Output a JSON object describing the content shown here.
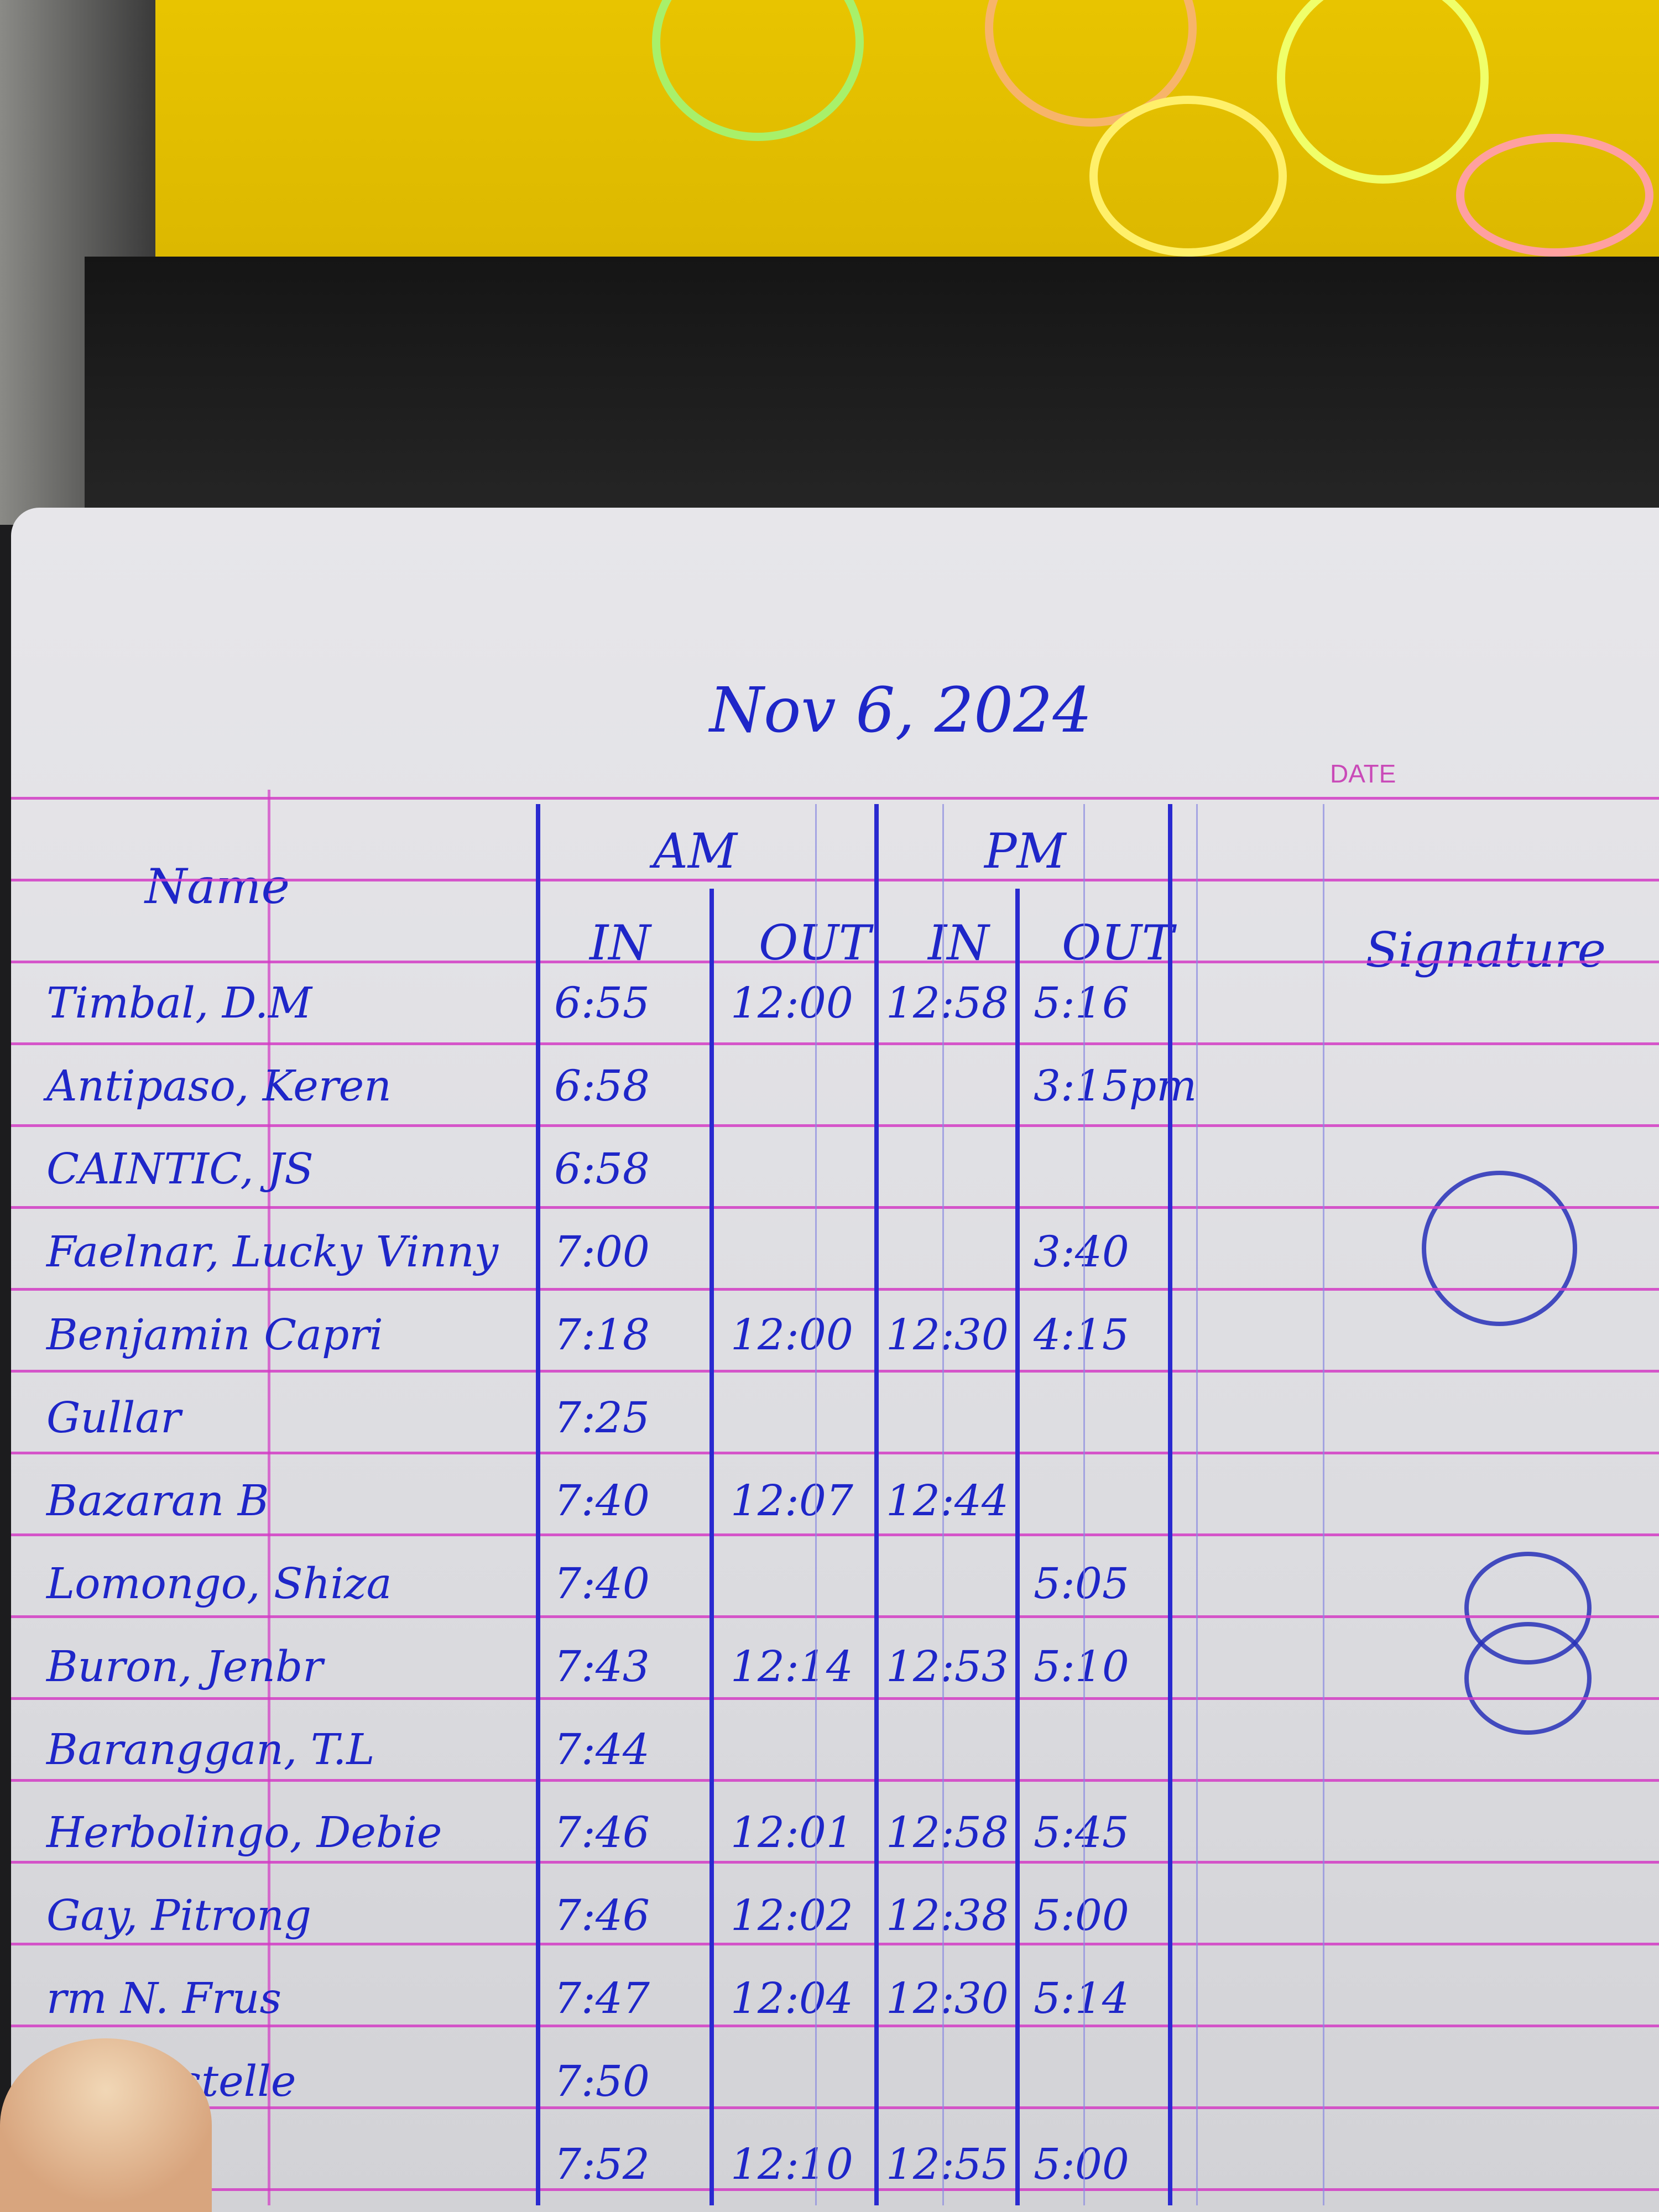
{
  "date_heading": "Nov 6, 2024",
  "printed_label": "DATE",
  "headers": {
    "name": "Name",
    "am": "AM",
    "pm": "PM",
    "am_in": "IN",
    "am_out": "OUT",
    "pm_in": "IN",
    "pm_out": "OUT",
    "signature": "Signature"
  },
  "colors": {
    "paper": "#e4e4e8",
    "ruling": "#d23cc4",
    "ink": "#1e26c8",
    "screen": "#e2be00"
  },
  "rows": [
    {
      "name": "Timbal, D.M",
      "am_in": "6:55",
      "am_out": "12:00",
      "pm_in": "12:58",
      "pm_out": "5:16"
    },
    {
      "name": "Antipaso, Keren",
      "am_in": "6:58",
      "am_out": "",
      "pm_in": "",
      "pm_out": "3:15pm"
    },
    {
      "name": "CAINTIC, JS",
      "am_in": "6:58",
      "am_out": "",
      "pm_in": "",
      "pm_out": ""
    },
    {
      "name": "Faelnar, Lucky Vinny",
      "am_in": "7:00",
      "am_out": "",
      "pm_in": "",
      "pm_out": "3:40"
    },
    {
      "name": "Benjamin Capri",
      "am_in": "7:18",
      "am_out": "12:00",
      "pm_in": "12:30",
      "pm_out": "4:15"
    },
    {
      "name": "Gullar",
      "am_in": "7:25",
      "am_out": "",
      "pm_in": "",
      "pm_out": ""
    },
    {
      "name": "Bazaran B",
      "am_in": "7:40",
      "am_out": "12:07",
      "pm_in": "12:44",
      "pm_out": ""
    },
    {
      "name": "Lomongo, Shiza",
      "am_in": "7:40",
      "am_out": "",
      "pm_in": "",
      "pm_out": "5:05"
    },
    {
      "name": "Buron, Jenbr",
      "am_in": "7:43",
      "am_out": "12:14",
      "pm_in": "12:53",
      "pm_out": "5:10"
    },
    {
      "name": "Baranggan, T.L",
      "am_in": "7:44",
      "am_out": "",
      "pm_in": "",
      "pm_out": ""
    },
    {
      "name": "Herbolingo, Debie",
      "am_in": "7:46",
      "am_out": "12:01",
      "pm_in": "12:58",
      "pm_out": "5:45"
    },
    {
      "name": "Gay, Pitrong",
      "am_in": "7:46",
      "am_out": "12:02",
      "pm_in": "12:38",
      "pm_out": "5:00"
    },
    {
      "name": "rm N. Frus",
      "am_in": "7:47",
      "am_out": "12:04",
      "pm_in": "12:30",
      "pm_out": "5:14"
    },
    {
      "name": "o, Chrstelle",
      "am_in": "7:50",
      "am_out": "",
      "pm_in": "",
      "pm_out": ""
    },
    {
      "name": "",
      "am_in": "7:52",
      "am_out": "12:10",
      "pm_in": "12:55",
      "pm_out": "5:00"
    }
  ]
}
